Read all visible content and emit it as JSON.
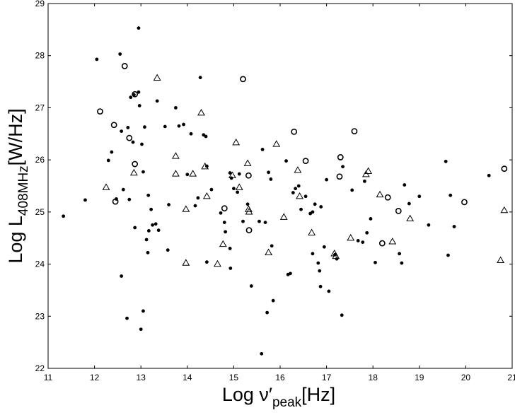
{
  "chart_data": {
    "type": "scatter",
    "title": "",
    "xlabel": {
      "main": "Log ν′",
      "sub": "peak",
      "unit": "[Hz]"
    },
    "ylabel": {
      "main": "Log L",
      "sub": "408MHz",
      "unit": "[W/Hz]"
    },
    "xlim": [
      11,
      21
    ],
    "ylim": [
      22,
      29
    ],
    "x_ticks": [
      11,
      12,
      13,
      14,
      15,
      16,
      17,
      18,
      19,
      20,
      21
    ],
    "y_ticks": [
      22,
      23,
      24,
      25,
      26,
      27,
      28,
      29
    ],
    "grid": false,
    "legend": "none",
    "color": "#000000",
    "series": [
      {
        "marker": "filled-circle",
        "points": [
          [
            11.33,
            24.92
          ],
          [
            11.8,
            25.23
          ],
          [
            12.05,
            27.93
          ],
          [
            12.3,
            25.99
          ],
          [
            12.37,
            26.15
          ],
          [
            12.47,
            25.25
          ],
          [
            12.55,
            28.03
          ],
          [
            12.58,
            26.55
          ],
          [
            12.62,
            25.43
          ],
          [
            12.58,
            23.77
          ],
          [
            12.7,
            22.96
          ],
          [
            12.72,
            26.62
          ],
          [
            12.75,
            25.24
          ],
          [
            12.78,
            27.2
          ],
          [
            12.83,
            26.34
          ],
          [
            12.85,
            27.25
          ],
          [
            12.87,
            24.7
          ],
          [
            12.95,
            27.3
          ],
          [
            12.95,
            28.53
          ],
          [
            12.97,
            27.04
          ],
          [
            13.0,
            22.75
          ],
          [
            13.02,
            26.3
          ],
          [
            13.05,
            23.1
          ],
          [
            13.05,
            25.77
          ],
          [
            13.08,
            26.63
          ],
          [
            13.12,
            24.47
          ],
          [
            13.15,
            24.22
          ],
          [
            13.16,
            25.32
          ],
          [
            13.17,
            24.64
          ],
          [
            13.22,
            25.05
          ],
          [
            13.25,
            24.75
          ],
          [
            13.32,
            24.77
          ],
          [
            13.35,
            27.13
          ],
          [
            13.38,
            24.65
          ],
          [
            13.52,
            26.64
          ],
          [
            13.58,
            24.27
          ],
          [
            13.6,
            25.14
          ],
          [
            13.75,
            27.0
          ],
          [
            13.82,
            26.65
          ],
          [
            13.92,
            26.68
          ],
          [
            14.0,
            25.72
          ],
          [
            14.08,
            26.5
          ],
          [
            14.17,
            25.12
          ],
          [
            14.23,
            25.27
          ],
          [
            14.28,
            27.58
          ],
          [
            14.35,
            26.48
          ],
          [
            14.4,
            26.45
          ],
          [
            14.42,
            25.88
          ],
          [
            14.42,
            24.04
          ],
          [
            14.52,
            25.43
          ],
          [
            14.72,
            24.98
          ],
          [
            14.8,
            24.8
          ],
          [
            14.82,
            24.62
          ],
          [
            14.92,
            25.75
          ],
          [
            14.92,
            24.3
          ],
          [
            14.93,
            23.92
          ],
          [
            14.95,
            25.65
          ],
          [
            15.0,
            25.45
          ],
          [
            15.08,
            25.38
          ],
          [
            15.12,
            25.73
          ],
          [
            15.2,
            24.82
          ],
          [
            15.3,
            25.15
          ],
          [
            15.38,
            23.58
          ],
          [
            15.55,
            24.82
          ],
          [
            15.6,
            22.28
          ],
          [
            15.62,
            26.2
          ],
          [
            15.68,
            24.8
          ],
          [
            15.72,
            23.07
          ],
          [
            15.75,
            25.76
          ],
          [
            15.8,
            25.63
          ],
          [
            15.82,
            24.35
          ],
          [
            15.85,
            23.3
          ],
          [
            16.13,
            25.98
          ],
          [
            16.17,
            23.8
          ],
          [
            16.22,
            23.82
          ],
          [
            16.28,
            25.37
          ],
          [
            16.33,
            25.45
          ],
          [
            16.4,
            25.5
          ],
          [
            16.45,
            25.05
          ],
          [
            16.55,
            25.3
          ],
          [
            16.65,
            24.97
          ],
          [
            16.7,
            24.2
          ],
          [
            16.7,
            25.0
          ],
          [
            16.75,
            25.15
          ],
          [
            16.82,
            24.02
          ],
          [
            16.85,
            23.87
          ],
          [
            16.87,
            23.57
          ],
          [
            16.88,
            25.1
          ],
          [
            16.95,
            24.33
          ],
          [
            17.0,
            25.62
          ],
          [
            17.05,
            23.48
          ],
          [
            17.18,
            24.18
          ],
          [
            17.22,
            24.1
          ],
          [
            17.33,
            23.02
          ],
          [
            17.35,
            25.87
          ],
          [
            17.55,
            25.42
          ],
          [
            17.68,
            24.45
          ],
          [
            17.78,
            24.42
          ],
          [
            17.82,
            25.59
          ],
          [
            17.87,
            24.6
          ],
          [
            17.95,
            24.87
          ],
          [
            18.05,
            24.03
          ],
          [
            18.57,
            24.2
          ],
          [
            18.62,
            24.02
          ],
          [
            18.68,
            25.52
          ],
          [
            18.78,
            25.16
          ],
          [
            19.0,
            25.3
          ],
          [
            19.2,
            24.75
          ],
          [
            19.57,
            25.97
          ],
          [
            19.62,
            24.17
          ],
          [
            19.67,
            25.32
          ],
          [
            19.75,
            24.72
          ],
          [
            20.5,
            25.7
          ]
        ]
      },
      {
        "marker": "open-circle",
        "points": [
          [
            12.12,
            26.93
          ],
          [
            12.42,
            26.67
          ],
          [
            12.45,
            25.2
          ],
          [
            12.65,
            27.8
          ],
          [
            12.75,
            26.42
          ],
          [
            12.87,
            25.92
          ],
          [
            12.87,
            27.26
          ],
          [
            14.8,
            25.07
          ],
          [
            15.2,
            27.55
          ],
          [
            15.32,
            25.7
          ],
          [
            15.33,
            24.65
          ],
          [
            16.3,
            26.54
          ],
          [
            16.55,
            25.98
          ],
          [
            17.28,
            25.68
          ],
          [
            17.3,
            26.05
          ],
          [
            17.6,
            26.55
          ],
          [
            18.2,
            24.4
          ],
          [
            18.32,
            25.28
          ],
          [
            18.55,
            25.02
          ],
          [
            19.97,
            25.19
          ],
          [
            20.83,
            25.83
          ]
        ]
      },
      {
        "marker": "open-triangle",
        "points": [
          [
            12.25,
            25.47
          ],
          [
            12.85,
            25.75
          ],
          [
            13.35,
            27.57
          ],
          [
            13.75,
            26.07
          ],
          [
            13.75,
            25.73
          ],
          [
            13.97,
            25.05
          ],
          [
            13.97,
            24.02
          ],
          [
            14.12,
            25.73
          ],
          [
            14.3,
            26.9
          ],
          [
            14.38,
            25.87
          ],
          [
            14.42,
            25.3
          ],
          [
            14.65,
            24.0
          ],
          [
            14.77,
            24.38
          ],
          [
            14.97,
            25.7
          ],
          [
            15.05,
            26.33
          ],
          [
            15.12,
            25.47
          ],
          [
            15.3,
            25.93
          ],
          [
            15.32,
            25.05
          ],
          [
            15.33,
            25.0
          ],
          [
            15.75,
            24.22
          ],
          [
            15.92,
            26.3
          ],
          [
            16.08,
            24.9
          ],
          [
            16.38,
            25.8
          ],
          [
            16.42,
            25.3
          ],
          [
            16.68,
            24.6
          ],
          [
            17.17,
            24.2
          ],
          [
            17.2,
            24.15
          ],
          [
            17.52,
            24.5
          ],
          [
            17.85,
            25.72
          ],
          [
            17.9,
            25.78
          ],
          [
            18.15,
            25.33
          ],
          [
            18.42,
            24.43
          ],
          [
            18.8,
            24.87
          ],
          [
            20.75,
            24.07
          ],
          [
            20.83,
            25.03
          ]
        ]
      }
    ]
  }
}
